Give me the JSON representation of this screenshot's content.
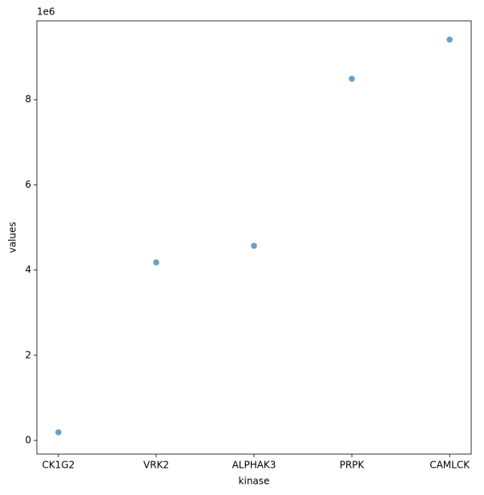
{
  "chart_data": {
    "type": "scatter",
    "x_label": "kinase",
    "y_label": "values",
    "y_offset_label": "1e6",
    "categories": [
      "CK1G2",
      "VRK2",
      "ALPHAK3",
      "PRPK",
      "CAMLCK"
    ],
    "values": [
      0.19,
      4.18,
      4.57,
      8.49,
      9.41
    ],
    "color": "#5b9bcb",
    "ylim": [
      -0.32,
      9.85
    ],
    "yticks": [
      0,
      2,
      4,
      6,
      8
    ]
  }
}
